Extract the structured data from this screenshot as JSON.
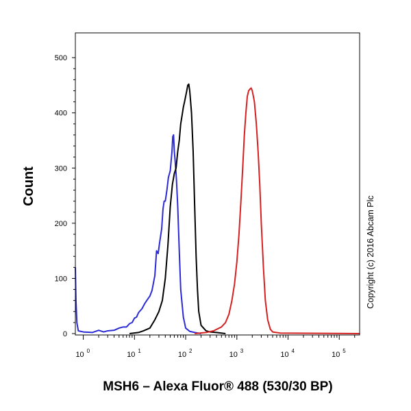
{
  "chart_data": {
    "type": "line",
    "xlabel": "MSH6 – Alexa Fluor® 488 (530/30 BP)",
    "ylabel": "Count",
    "x_scale": "log",
    "xlim": [
      0.7,
      250000
    ],
    "ylim": [
      0,
      530
    ],
    "y_ticks": [
      0,
      100,
      200,
      300,
      400,
      500
    ],
    "y_tick_labels": [
      "0",
      "100",
      "200",
      "300",
      "400",
      "500"
    ],
    "x_ticks": [
      1,
      10,
      100,
      1000,
      10000,
      100000
    ],
    "x_tick_labels": [
      {
        "base": "10",
        "exp": "0"
      },
      {
        "base": "10",
        "exp": "1"
      },
      {
        "base": "10",
        "exp": "2"
      },
      {
        "base": "10",
        "exp": "3"
      },
      {
        "base": "10",
        "exp": "4"
      },
      {
        "base": "10",
        "exp": "5"
      }
    ],
    "grid": false,
    "legend": "none",
    "annotation": "Copyright (c) 2016 Abcam Plc",
    "series": [
      {
        "color": "#2a2ad6",
        "points": [
          [
            0.7,
            120
          ],
          [
            0.72,
            60
          ],
          [
            0.75,
            20
          ],
          [
            0.8,
            5
          ],
          [
            1,
            3
          ],
          [
            1.5,
            2
          ],
          [
            2,
            6
          ],
          [
            2.5,
            3
          ],
          [
            3,
            5
          ],
          [
            4,
            6
          ],
          [
            5,
            10
          ],
          [
            6,
            12
          ],
          [
            7,
            12
          ],
          [
            8,
            18
          ],
          [
            9,
            20
          ],
          [
            10,
            28
          ],
          [
            11,
            30
          ],
          [
            12,
            38
          ],
          [
            14,
            45
          ],
          [
            16,
            55
          ],
          [
            18,
            62
          ],
          [
            20,
            68
          ],
          [
            22,
            78
          ],
          [
            25,
            105
          ],
          [
            27,
            150
          ],
          [
            29,
            145
          ],
          [
            31,
            165
          ],
          [
            34,
            190
          ],
          [
            36,
            225
          ],
          [
            38,
            240
          ],
          [
            40,
            240
          ],
          [
            43,
            260
          ],
          [
            46,
            283
          ],
          [
            50,
            295
          ],
          [
            54,
            330
          ],
          [
            56,
            357
          ],
          [
            58,
            360
          ],
          [
            60,
            330
          ],
          [
            62,
            315
          ],
          [
            66,
            280
          ],
          [
            70,
            230
          ],
          [
            75,
            150
          ],
          [
            80,
            80
          ],
          [
            90,
            30
          ],
          [
            100,
            10
          ],
          [
            120,
            4
          ],
          [
            150,
            2
          ],
          [
            200,
            0
          ]
        ]
      },
      {
        "color": "#000000",
        "points": [
          [
            8,
            0
          ],
          [
            12,
            2
          ],
          [
            15,
            5
          ],
          [
            20,
            10
          ],
          [
            25,
            25
          ],
          [
            30,
            40
          ],
          [
            35,
            60
          ],
          [
            40,
            100
          ],
          [
            45,
            160
          ],
          [
            50,
            230
          ],
          [
            55,
            270
          ],
          [
            60,
            290
          ],
          [
            65,
            300
          ],
          [
            70,
            330
          ],
          [
            75,
            350
          ],
          [
            80,
            380
          ],
          [
            85,
            395
          ],
          [
            90,
            410
          ],
          [
            95,
            420
          ],
          [
            100,
            430
          ],
          [
            105,
            440
          ],
          [
            110,
            450
          ],
          [
            115,
            452
          ],
          [
            120,
            440
          ],
          [
            125,
            420
          ],
          [
            130,
            400
          ],
          [
            140,
            330
          ],
          [
            150,
            230
          ],
          [
            160,
            140
          ],
          [
            170,
            80
          ],
          [
            180,
            40
          ],
          [
            200,
            15
          ],
          [
            250,
            5
          ],
          [
            300,
            3
          ],
          [
            400,
            2
          ],
          [
            600,
            0
          ]
        ]
      },
      {
        "color": "#d42020",
        "points": [
          [
            150,
            0
          ],
          [
            250,
            2
          ],
          [
            350,
            5
          ],
          [
            500,
            12
          ],
          [
            600,
            20
          ],
          [
            700,
            35
          ],
          [
            800,
            60
          ],
          [
            900,
            90
          ],
          [
            1000,
            130
          ],
          [
            1100,
            180
          ],
          [
            1200,
            240
          ],
          [
            1300,
            300
          ],
          [
            1400,
            360
          ],
          [
            1500,
            400
          ],
          [
            1600,
            430
          ],
          [
            1700,
            440
          ],
          [
            1800,
            443
          ],
          [
            1900,
            445
          ],
          [
            2000,
            440
          ],
          [
            2100,
            430
          ],
          [
            2200,
            420
          ],
          [
            2400,
            380
          ],
          [
            2600,
            330
          ],
          [
            2800,
            270
          ],
          [
            3000,
            200
          ],
          [
            3300,
            120
          ],
          [
            3600,
            60
          ],
          [
            4000,
            25
          ],
          [
            4500,
            8
          ],
          [
            5000,
            3
          ],
          [
            7000,
            1
          ],
          [
            250000,
            0
          ]
        ]
      }
    ]
  }
}
